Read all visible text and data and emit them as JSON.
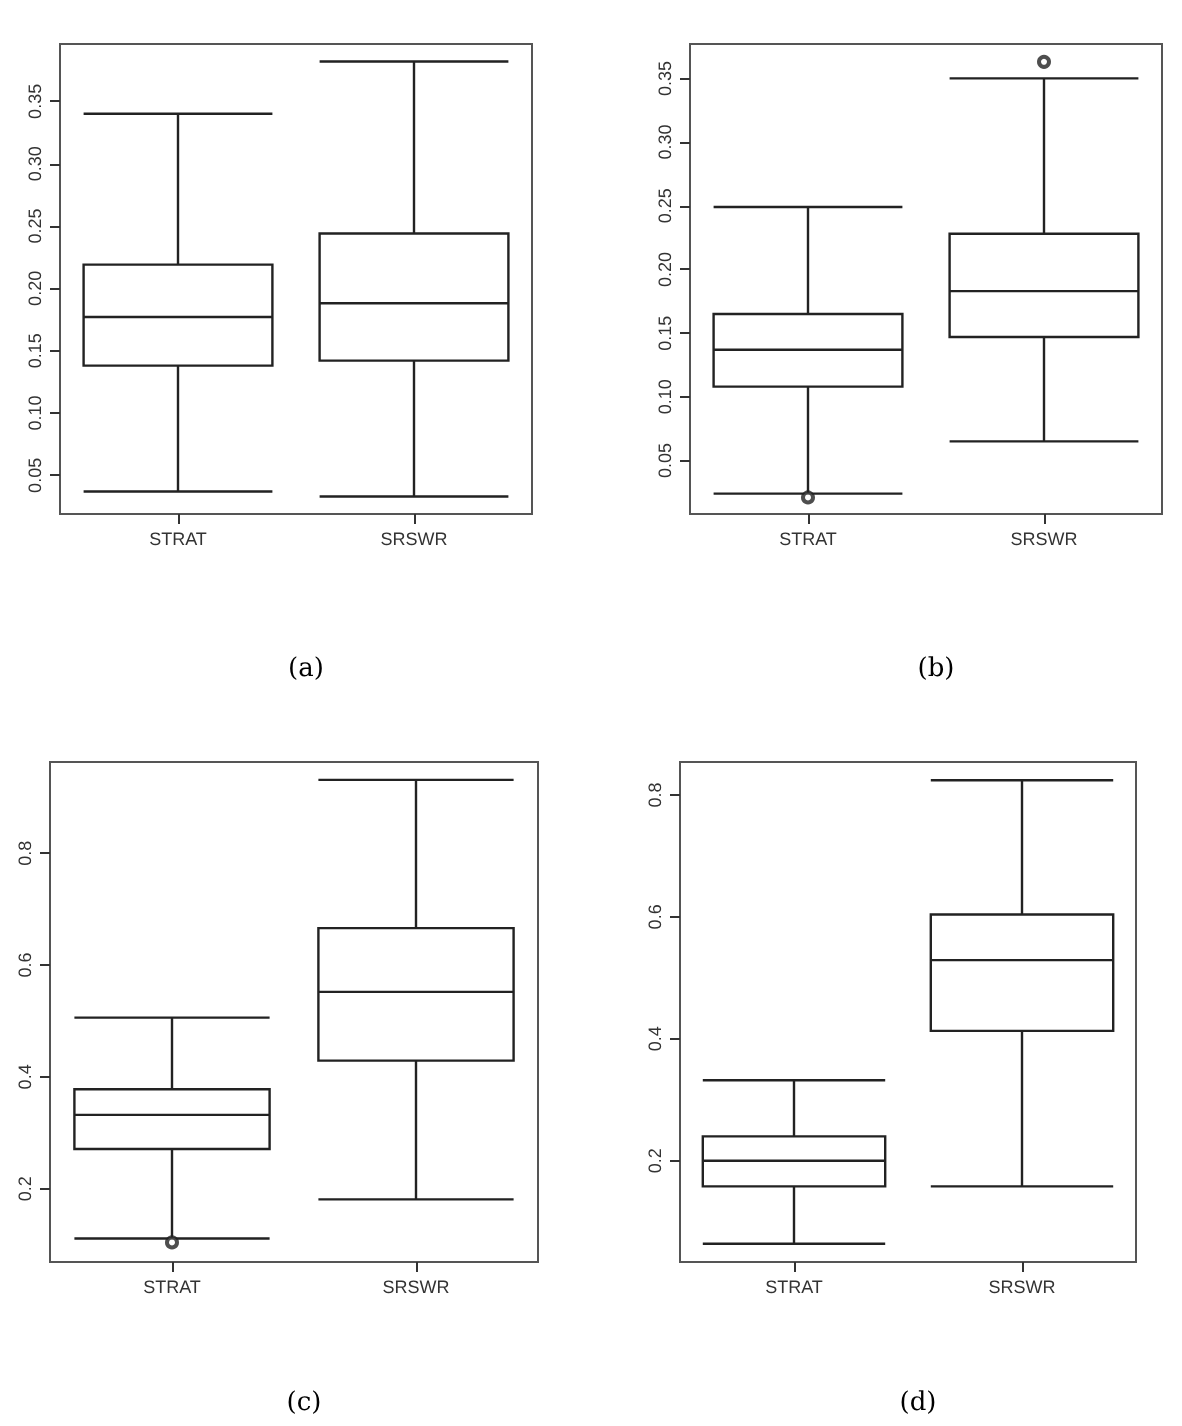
{
  "chart_data": [
    {
      "type": "box",
      "categories": [
        "STRAT",
        "SRSWR"
      ],
      "annotations": [
        "(a)"
      ],
      "ylim": [
        0.019,
        0.396
      ],
      "yticks": [
        {
          "value": 0.05,
          "label": "0.05"
        },
        {
          "value": 0.1,
          "label": "0.10"
        },
        {
          "value": 0.15,
          "label": "0.15"
        },
        {
          "value": 0.2,
          "label": "0.20"
        },
        {
          "value": 0.25,
          "label": "0.25"
        },
        {
          "value": 0.3,
          "label": "0.30"
        },
        {
          "value": 0.35,
          "label": "0.35"
        }
      ],
      "boxes": [
        {
          "low": 0.037,
          "q1": 0.138,
          "median": 0.177,
          "q3": 0.219,
          "high": 0.34
        },
        {
          "low": 0.033,
          "q1": 0.142,
          "median": 0.188,
          "q3": 0.244,
          "high": 0.382
        }
      ]
    },
    {
      "type": "box",
      "categories": [
        "STRAT",
        "SRSWR"
      ],
      "annotations": [
        "(b)"
      ],
      "ylim": [
        0.008,
        0.377
      ],
      "yticks": [
        {
          "value": 0.05,
          "label": "0.05"
        },
        {
          "value": 0.1,
          "label": "0.10"
        },
        {
          "value": 0.15,
          "label": "0.15"
        },
        {
          "value": 0.2,
          "label": "0.20"
        },
        {
          "value": 0.25,
          "label": "0.25"
        },
        {
          "value": 0.3,
          "label": "0.30"
        },
        {
          "value": 0.35,
          "label": "0.35"
        }
      ],
      "boxes": [
        {
          "low": 0.024,
          "q1": 0.108,
          "median": 0.137,
          "q3": 0.165,
          "high": 0.249,
          "outliers": [
            0.021
          ]
        },
        {
          "low": 0.065,
          "q1": 0.147,
          "median": 0.183,
          "q3": 0.228,
          "high": 0.35,
          "outliers": [
            0.363
          ]
        }
      ]
    },
    {
      "type": "box",
      "categories": [
        "STRAT",
        "SRSWR"
      ],
      "annotations": [
        "(c)"
      ],
      "ylim": [
        0.069,
        0.963
      ],
      "yticks": [
        0.2,
        0.4,
        0.6,
        0.8
      ],
      "boxes": [
        {
          "low": 0.111,
          "q1": 0.271,
          "median": 0.332,
          "q3": 0.378,
          "high": 0.506,
          "outliers": [
            0.104
          ]
        },
        {
          "low": 0.181,
          "q1": 0.429,
          "median": 0.552,
          "q3": 0.666,
          "high": 0.931
        }
      ]
    },
    {
      "type": "box",
      "categories": [
        "STRAT",
        "SRSWR"
      ],
      "annotations": [
        "(d)"
      ],
      "ylim": [
        0.034,
        0.854
      ],
      "yticks": [
        0.2,
        0.4,
        0.6,
        0.8
      ],
      "boxes": [
        {
          "low": 0.064,
          "q1": 0.158,
          "median": 0.2,
          "q3": 0.24,
          "high": 0.332
        },
        {
          "low": 0.158,
          "q1": 0.413,
          "median": 0.529,
          "q3": 0.604,
          "high": 0.824
        }
      ]
    }
  ]
}
